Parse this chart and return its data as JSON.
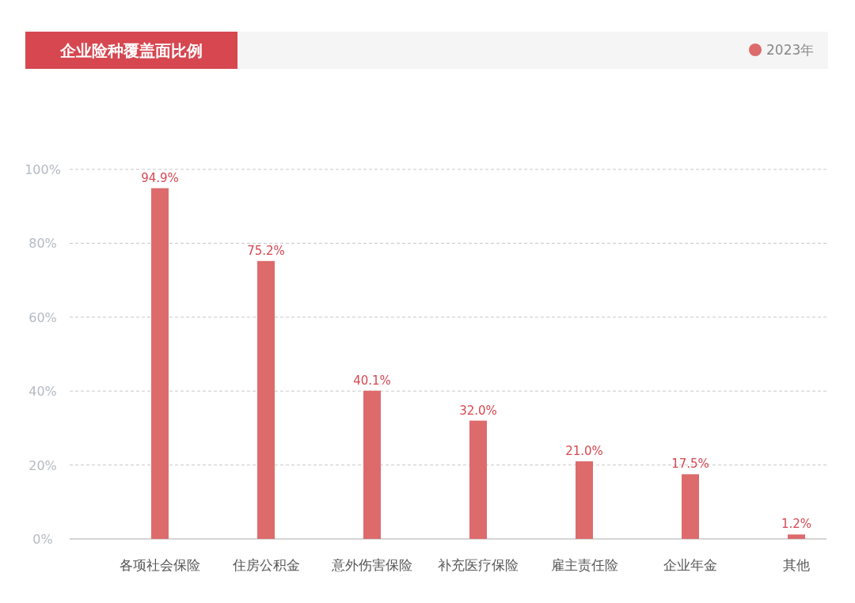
{
  "chart_data": {
    "type": "bar",
    "title": "企业险种覆盖面比例",
    "categories": [
      "各项社会保险",
      "住房公积金",
      "意外伤害保险",
      "补充医疗保险",
      "雇主责任险",
      "企业年金",
      "其他"
    ],
    "series": [
      {
        "name": "2023年",
        "color": "#dd6b6b",
        "values": [
          94.9,
          75.2,
          40.1,
          32.0,
          21.0,
          17.5,
          1.2
        ],
        "value_labels": [
          "94.9%",
          "75.2%",
          "40.1%",
          "32.0%",
          "21.0%",
          "17.5%",
          "1.2%"
        ]
      }
    ],
    "ylim": [
      0,
      100
    ],
    "yticks": [
      {
        "value": 0,
        "label": "0%"
      },
      {
        "value": 20,
        "label": "20%"
      },
      {
        "value": 40,
        "label": "40%"
      },
      {
        "value": 60,
        "label": "60%"
      },
      {
        "value": 80,
        "label": "80%"
      },
      {
        "value": 100,
        "label": "100%"
      }
    ],
    "grid": "y",
    "legend": "top right"
  }
}
